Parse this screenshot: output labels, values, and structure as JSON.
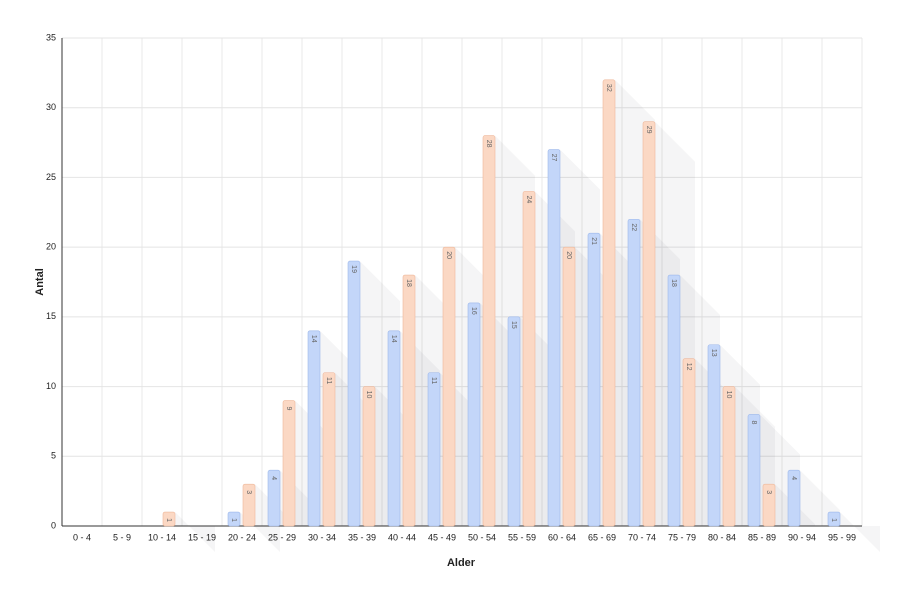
{
  "chart_data": {
    "type": "bar",
    "x_label": "Alder",
    "y_label": "Antal",
    "categories": [
      "0 - 4",
      "5 - 9",
      "10 - 14",
      "15 - 19",
      "20 - 24",
      "25 - 29",
      "30 - 34",
      "35 - 39",
      "40 - 44",
      "45 - 49",
      "50 - 54",
      "55 - 59",
      "60 - 64",
      "65 - 69",
      "70 - 74",
      "75 - 79",
      "80 - 84",
      "85 - 89",
      "90 - 94",
      "95 - 99"
    ],
    "series": [
      {
        "color": "#c3d6f9",
        "values": [
          null,
          null,
          null,
          null,
          1,
          4,
          14,
          19,
          14,
          11,
          16,
          15,
          27,
          21,
          22,
          18,
          13,
          8,
          4,
          1
        ]
      },
      {
        "color": "#fbd8c4",
        "values": [
          null,
          null,
          1,
          null,
          3,
          9,
          11,
          10,
          18,
          20,
          28,
          24,
          20,
          32,
          29,
          12,
          10,
          3,
          null,
          null
        ]
      }
    ],
    "ylim": [
      0,
      35
    ],
    "yticks": [
      0,
      5,
      10,
      15,
      20,
      25,
      30,
      35
    ],
    "grid": true
  }
}
